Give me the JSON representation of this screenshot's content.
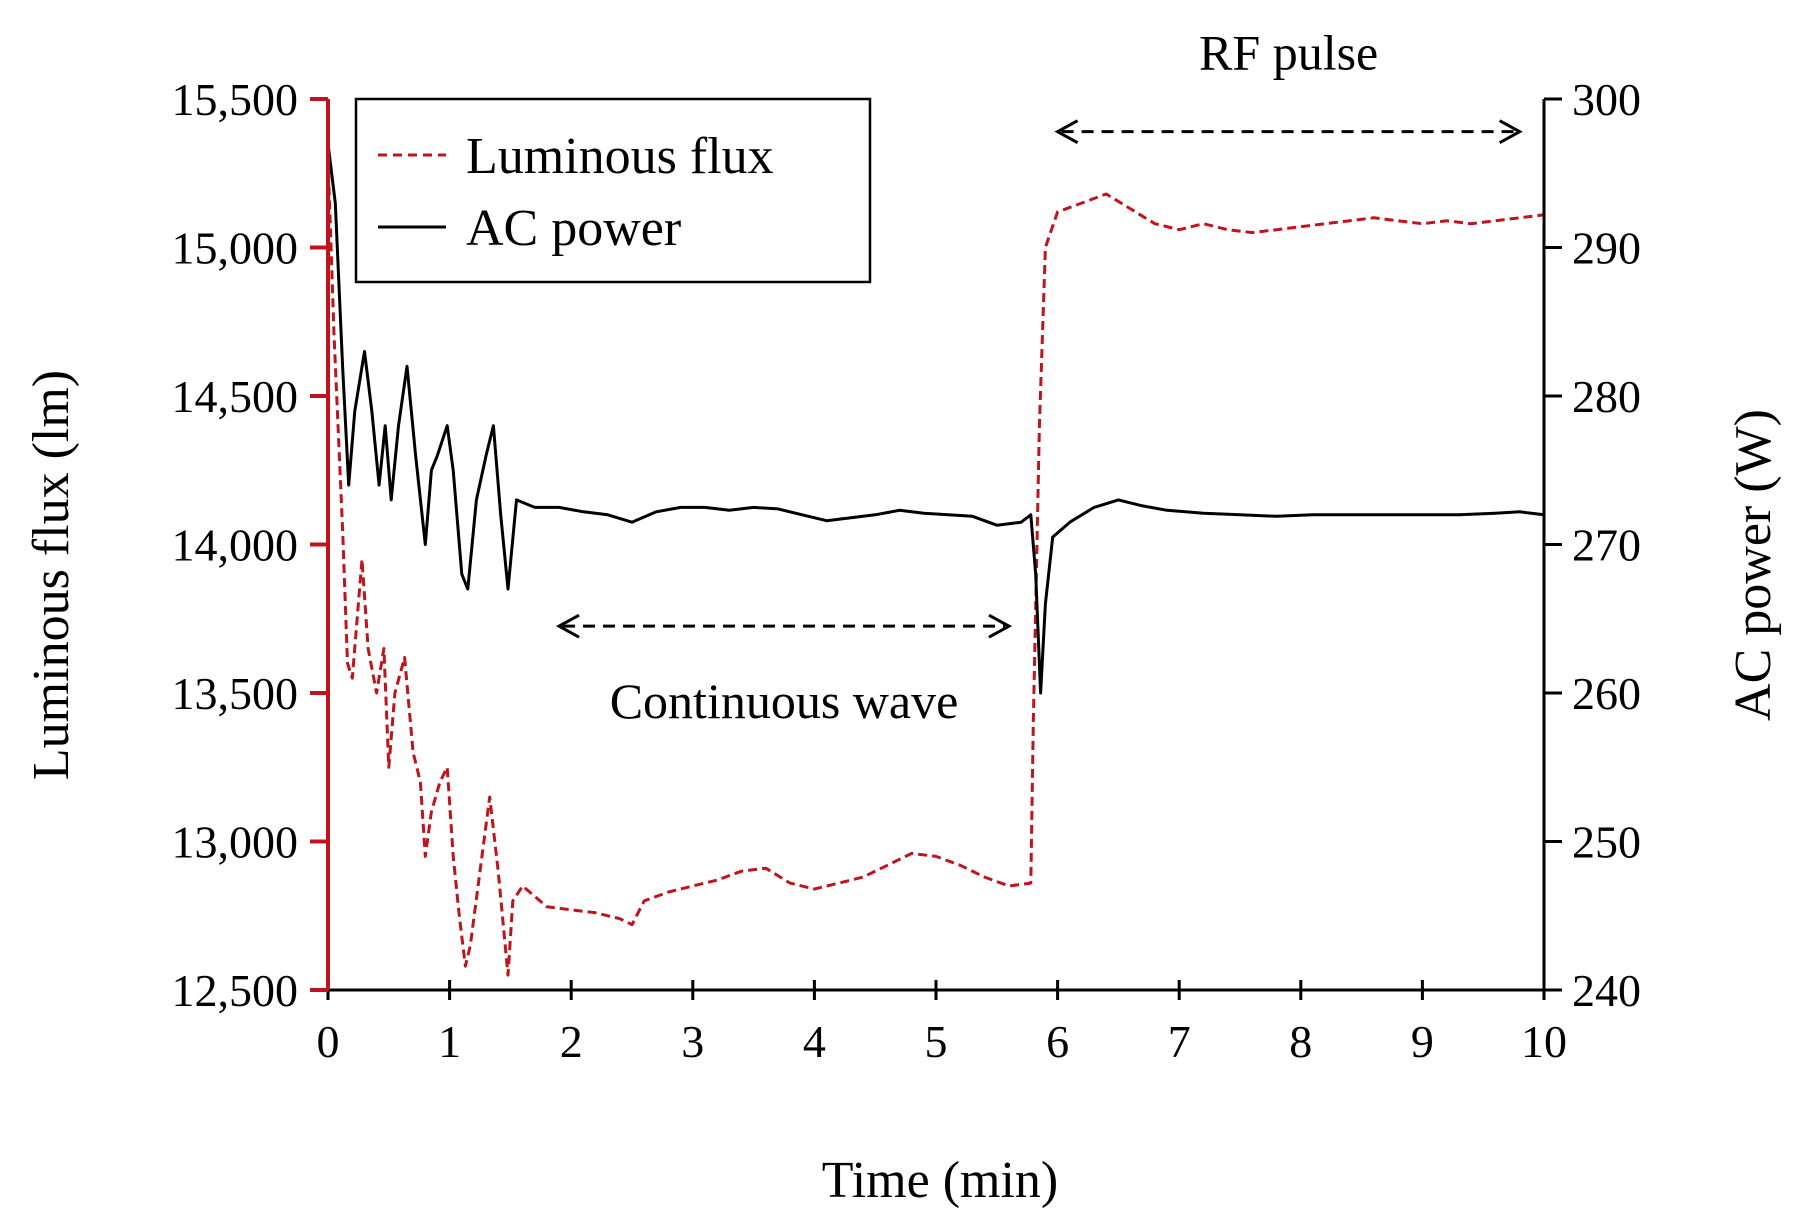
{
  "chart_data": {
    "type": "line",
    "title": "",
    "xlabel": "Time (min)",
    "ylabel_left": "Luminous flux (lm)",
    "ylabel_right": "AC power (W)",
    "xlim": [
      0,
      10
    ],
    "ylim_left": [
      12500,
      15500
    ],
    "ylim_right": [
      240,
      300
    ],
    "x_ticks": [
      "0",
      "1",
      "2",
      "3",
      "4",
      "5",
      "6",
      "7",
      "8",
      "9",
      "10"
    ],
    "y_left_ticks": [
      "12,500",
      "13,000",
      "13,500",
      "14,000",
      "14,500",
      "15,000",
      "15,500"
    ],
    "y_right_ticks": [
      "240",
      "250",
      "260",
      "270",
      "280",
      "290",
      "300"
    ],
    "grid": false,
    "legend_position": "top-left",
    "colors": {
      "flux": "#c0141c",
      "power": "#000000",
      "left_axis": "#c0141c"
    },
    "series": [
      {
        "name": "Luminous flux",
        "axis": "left",
        "style": "dashed",
        "points": [
          [
            0.0,
            15300
          ],
          [
            0.05,
            14700
          ],
          [
            0.12,
            14050
          ],
          [
            0.16,
            13600
          ],
          [
            0.2,
            13550
          ],
          [
            0.28,
            13950
          ],
          [
            0.33,
            13650
          ],
          [
            0.4,
            13500
          ],
          [
            0.46,
            13650
          ],
          [
            0.5,
            13250
          ],
          [
            0.55,
            13500
          ],
          [
            0.63,
            13620
          ],
          [
            0.7,
            13300
          ],
          [
            0.76,
            13200
          ],
          [
            0.8,
            12950
          ],
          [
            0.85,
            13100
          ],
          [
            0.92,
            13200
          ],
          [
            0.98,
            13250
          ],
          [
            1.03,
            12950
          ],
          [
            1.08,
            12750
          ],
          [
            1.13,
            12580
          ],
          [
            1.17,
            12650
          ],
          [
            1.25,
            12900
          ],
          [
            1.33,
            13150
          ],
          [
            1.4,
            12900
          ],
          [
            1.48,
            12550
          ],
          [
            1.52,
            12800
          ],
          [
            1.6,
            12850
          ],
          [
            1.8,
            12780
          ],
          [
            2.0,
            12770
          ],
          [
            2.2,
            12760
          ],
          [
            2.4,
            12740
          ],
          [
            2.5,
            12720
          ],
          [
            2.6,
            12800
          ],
          [
            2.8,
            12830
          ],
          [
            3.0,
            12850
          ],
          [
            3.2,
            12870
          ],
          [
            3.4,
            12900
          ],
          [
            3.6,
            12910
          ],
          [
            3.8,
            12860
          ],
          [
            4.0,
            12840
          ],
          [
            4.2,
            12860
          ],
          [
            4.4,
            12880
          ],
          [
            4.6,
            12920
          ],
          [
            4.8,
            12960
          ],
          [
            5.0,
            12950
          ],
          [
            5.2,
            12920
          ],
          [
            5.4,
            12880
          ],
          [
            5.6,
            12850
          ],
          [
            5.78,
            12860
          ],
          [
            5.8,
            13400
          ],
          [
            5.85,
            14400
          ],
          [
            5.9,
            15000
          ],
          [
            6.0,
            15120
          ],
          [
            6.2,
            15150
          ],
          [
            6.4,
            15180
          ],
          [
            6.6,
            15130
          ],
          [
            6.8,
            15080
          ],
          [
            7.0,
            15060
          ],
          [
            7.2,
            15080
          ],
          [
            7.4,
            15060
          ],
          [
            7.6,
            15050
          ],
          [
            7.8,
            15060
          ],
          [
            8.0,
            15070
          ],
          [
            8.2,
            15080
          ],
          [
            8.4,
            15090
          ],
          [
            8.6,
            15100
          ],
          [
            8.8,
            15090
          ],
          [
            9.0,
            15080
          ],
          [
            9.2,
            15090
          ],
          [
            9.4,
            15080
          ],
          [
            9.6,
            15090
          ],
          [
            9.8,
            15100
          ],
          [
            10.0,
            15110
          ]
        ]
      },
      {
        "name": "AC power",
        "axis": "right",
        "style": "solid",
        "points": [
          [
            0.0,
            297
          ],
          [
            0.06,
            293
          ],
          [
            0.12,
            282
          ],
          [
            0.17,
            274
          ],
          [
            0.22,
            279
          ],
          [
            0.3,
            283
          ],
          [
            0.36,
            279
          ],
          [
            0.42,
            274
          ],
          [
            0.47,
            278
          ],
          [
            0.52,
            273
          ],
          [
            0.58,
            278
          ],
          [
            0.65,
            282
          ],
          [
            0.72,
            276
          ],
          [
            0.8,
            270
          ],
          [
            0.85,
            275
          ],
          [
            0.9,
            276
          ],
          [
            0.98,
            278
          ],
          [
            1.03,
            275
          ],
          [
            1.1,
            268
          ],
          [
            1.15,
            267
          ],
          [
            1.22,
            273
          ],
          [
            1.3,
            276
          ],
          [
            1.36,
            278
          ],
          [
            1.42,
            272
          ],
          [
            1.48,
            267
          ],
          [
            1.55,
            273
          ],
          [
            1.7,
            272.5
          ],
          [
            1.9,
            272.5
          ],
          [
            2.1,
            272.2
          ],
          [
            2.3,
            272
          ],
          [
            2.5,
            271.5
          ],
          [
            2.7,
            272.2
          ],
          [
            2.9,
            272.5
          ],
          [
            3.1,
            272.5
          ],
          [
            3.3,
            272.3
          ],
          [
            3.5,
            272.5
          ],
          [
            3.7,
            272.4
          ],
          [
            3.9,
            272
          ],
          [
            4.1,
            271.6
          ],
          [
            4.3,
            271.8
          ],
          [
            4.5,
            272
          ],
          [
            4.7,
            272.3
          ],
          [
            4.9,
            272.1
          ],
          [
            5.1,
            272
          ],
          [
            5.3,
            271.9
          ],
          [
            5.5,
            271.3
          ],
          [
            5.7,
            271.5
          ],
          [
            5.78,
            272
          ],
          [
            5.82,
            268
          ],
          [
            5.86,
            260
          ],
          [
            5.9,
            266
          ],
          [
            5.96,
            270.5
          ],
          [
            6.1,
            271.5
          ],
          [
            6.3,
            272.5
          ],
          [
            6.5,
            273
          ],
          [
            6.7,
            272.6
          ],
          [
            6.9,
            272.3
          ],
          [
            7.2,
            272.1
          ],
          [
            7.5,
            272
          ],
          [
            7.8,
            271.9
          ],
          [
            8.1,
            272
          ],
          [
            8.4,
            272
          ],
          [
            8.7,
            272
          ],
          [
            9.0,
            272
          ],
          [
            9.3,
            272
          ],
          [
            9.6,
            272.1
          ],
          [
            9.8,
            272.2
          ],
          [
            10.0,
            272
          ]
        ]
      }
    ],
    "annotations": [
      {
        "text": "RF pulse",
        "x_range": [
          6.0,
          9.8
        ],
        "axis": "right",
        "y": 297.8
      },
      {
        "text": "Continuous wave",
        "x_range": [
          1.9,
          5.6
        ],
        "axis": "right",
        "y": 264.5
      }
    ]
  }
}
